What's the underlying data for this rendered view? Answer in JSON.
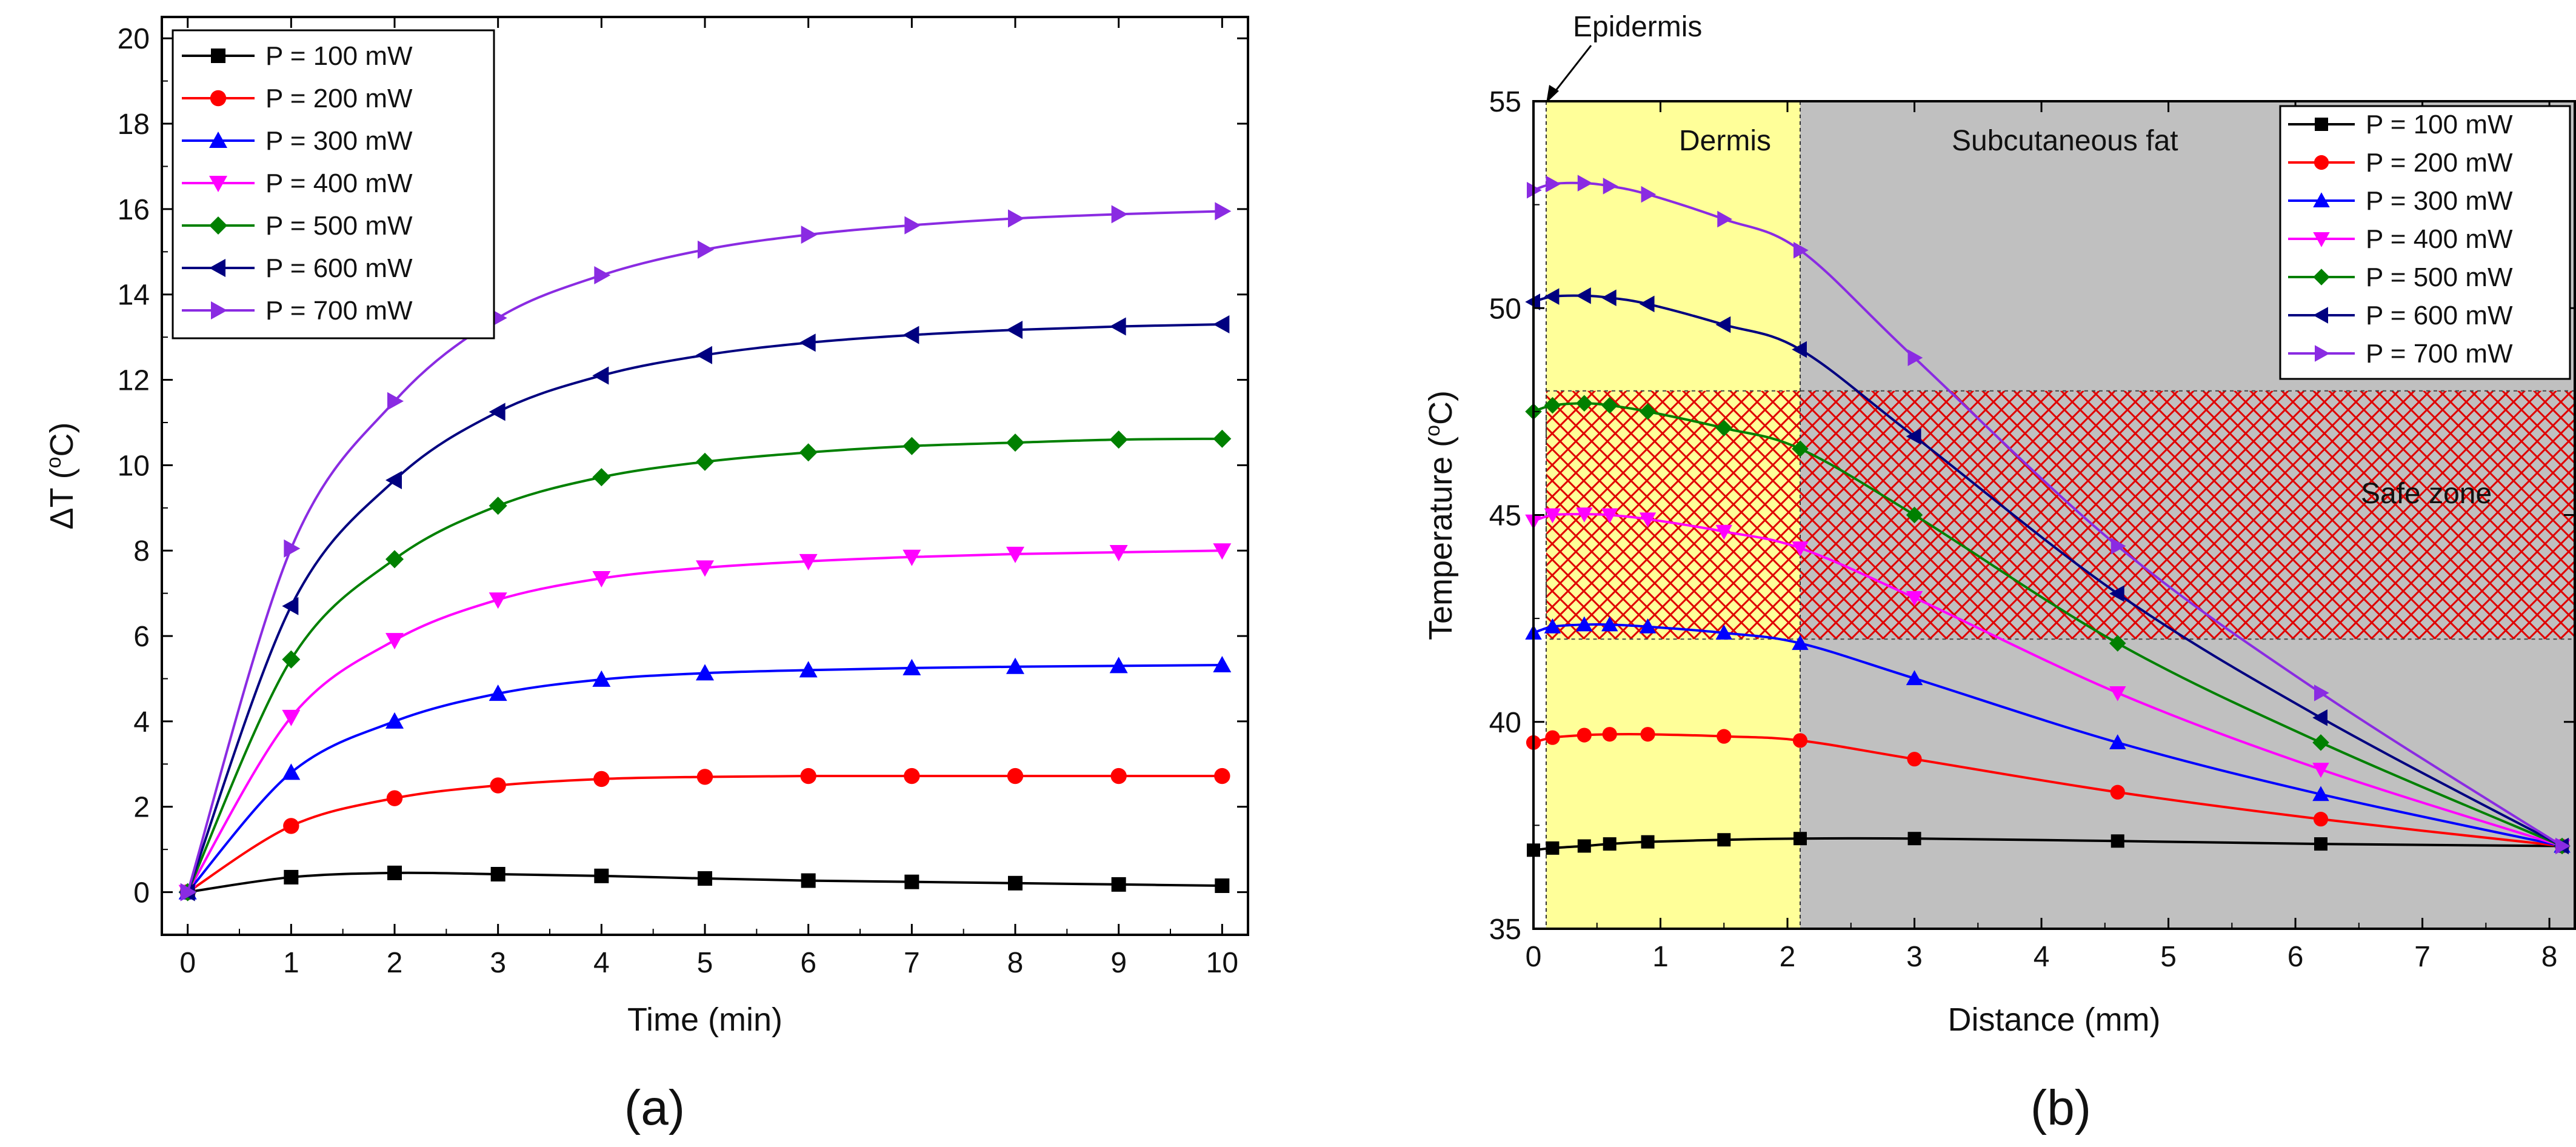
{
  "chart_data": [
    {
      "id": "a",
      "type": "line",
      "panel_label": "(a)",
      "title": "",
      "xlabel": "Time (min)",
      "ylabel_main": "ΔT (",
      "ylabel_sup": "o",
      "ylabel_end": "C)",
      "xlim": [
        -0.25,
        10.25
      ],
      "ylim": [
        -1,
        20.5
      ],
      "xticks": [
        0,
        1,
        2,
        3,
        4,
        5,
        6,
        7,
        8,
        9,
        10
      ],
      "yticks": [
        0,
        2,
        4,
        6,
        8,
        10,
        12,
        14,
        16,
        18,
        20
      ],
      "x": [
        0,
        1,
        2,
        3,
        4,
        5,
        6,
        7,
        8,
        9,
        10
      ],
      "legend_position": "top-left",
      "series": [
        {
          "name": "P = 100 mW",
          "color": "#000000",
          "marker": "square",
          "values": [
            0,
            0.35,
            0.45,
            0.42,
            0.38,
            0.32,
            0.27,
            0.24,
            0.21,
            0.18,
            0.15
          ]
        },
        {
          "name": "P = 200 mW",
          "color": "#ff0000",
          "marker": "circle",
          "values": [
            0,
            1.55,
            2.2,
            2.5,
            2.65,
            2.7,
            2.72,
            2.72,
            2.72,
            2.72,
            2.72
          ]
        },
        {
          "name": "P = 300 mW",
          "color": "#0000ff",
          "marker": "triangle-up",
          "values": [
            0,
            2.8,
            4.0,
            4.65,
            4.98,
            5.13,
            5.2,
            5.25,
            5.28,
            5.3,
            5.32
          ]
        },
        {
          "name": "P = 400 mW",
          "color": "#ff00ff",
          "marker": "triangle-down",
          "values": [
            0,
            4.1,
            5.9,
            6.85,
            7.35,
            7.6,
            7.75,
            7.85,
            7.92,
            7.96,
            8.0
          ]
        },
        {
          "name": "P = 500 mW",
          "color": "#008000",
          "marker": "diamond",
          "values": [
            0,
            5.45,
            7.8,
            9.05,
            9.72,
            10.08,
            10.3,
            10.45,
            10.53,
            10.6,
            10.62
          ]
        },
        {
          "name": "P = 600 mW",
          "color": "#000080",
          "marker": "triangle-left",
          "values": [
            0,
            6.7,
            9.65,
            11.25,
            12.1,
            12.58,
            12.87,
            13.05,
            13.17,
            13.25,
            13.3
          ]
        },
        {
          "name": "P = 700 mW",
          "color": "#8a2be2",
          "marker": "triangle-right",
          "values": [
            0,
            8.05,
            11.5,
            13.45,
            14.45,
            15.05,
            15.4,
            15.62,
            15.78,
            15.88,
            15.95
          ]
        }
      ]
    },
    {
      "id": "b",
      "type": "line",
      "panel_label": "(b)",
      "title": "",
      "xlabel": "Distance (mm)",
      "ylabel_main": "Temperature (",
      "ylabel_sup": "o",
      "ylabel_end": "C)",
      "xlim": [
        0,
        8.2
      ],
      "ylim": [
        35,
        55
      ],
      "xticks": [
        0,
        1,
        2,
        3,
        4,
        5,
        6,
        7,
        8
      ],
      "yticks": [
        35,
        40,
        45,
        50,
        55
      ],
      "x": [
        0,
        0.15,
        0.4,
        0.6,
        0.9,
        1.5,
        2.1,
        3.0,
        4.6,
        6.2,
        8.1
      ],
      "legend_position": "top-right",
      "regions": [
        {
          "name": "Epidermis",
          "x_range": [
            0,
            0.1
          ]
        },
        {
          "name": "Dermis",
          "x_range": [
            0.1,
            2.1
          ],
          "color": "#ffff99"
        },
        {
          "name": "Subcutaneous fat",
          "x_range": [
            2.1,
            8.2
          ],
          "color": "#c0c0c0"
        }
      ],
      "safe_zone": {
        "label": "Safe zone",
        "y_range": [
          42,
          48
        ],
        "color": "#e00000"
      },
      "series": [
        {
          "name": "P = 100 mW",
          "color": "#000000",
          "marker": "square",
          "values": [
            36.9,
            36.95,
            37.0,
            37.05,
            37.1,
            37.15,
            37.18,
            37.18,
            37.12,
            37.05,
            37.0
          ]
        },
        {
          "name": "P = 200 mW",
          "color": "#ff0000",
          "marker": "circle",
          "values": [
            39.5,
            39.62,
            39.68,
            39.7,
            39.7,
            39.65,
            39.55,
            39.1,
            38.3,
            37.65,
            37.0
          ]
        },
        {
          "name": "P = 300 mW",
          "color": "#0000ff",
          "marker": "triangle-up",
          "values": [
            42.15,
            42.3,
            42.35,
            42.35,
            42.3,
            42.15,
            41.9,
            41.05,
            39.5,
            38.25,
            37.0
          ]
        },
        {
          "name": "P = 400 mW",
          "color": "#ff00ff",
          "marker": "triangle-down",
          "values": [
            44.85,
            45.0,
            45.02,
            45.0,
            44.9,
            44.6,
            44.2,
            43.0,
            40.7,
            38.85,
            37.0
          ]
        },
        {
          "name": "P = 500 mW",
          "color": "#008000",
          "marker": "diamond",
          "values": [
            47.5,
            47.65,
            47.7,
            47.65,
            47.5,
            47.1,
            46.6,
            45.0,
            41.9,
            39.5,
            37.0
          ]
        },
        {
          "name": "P = 600 mW",
          "color": "#000080",
          "marker": "triangle-left",
          "values": [
            50.15,
            50.28,
            50.3,
            50.25,
            50.1,
            49.6,
            49.0,
            46.9,
            43.1,
            40.1,
            37.0
          ]
        },
        {
          "name": "P = 700 mW",
          "color": "#8a2be2",
          "marker": "triangle-right",
          "values": [
            52.85,
            53.0,
            53.02,
            52.95,
            52.75,
            52.15,
            51.4,
            48.8,
            44.25,
            40.7,
            37.0
          ]
        }
      ]
    }
  ]
}
